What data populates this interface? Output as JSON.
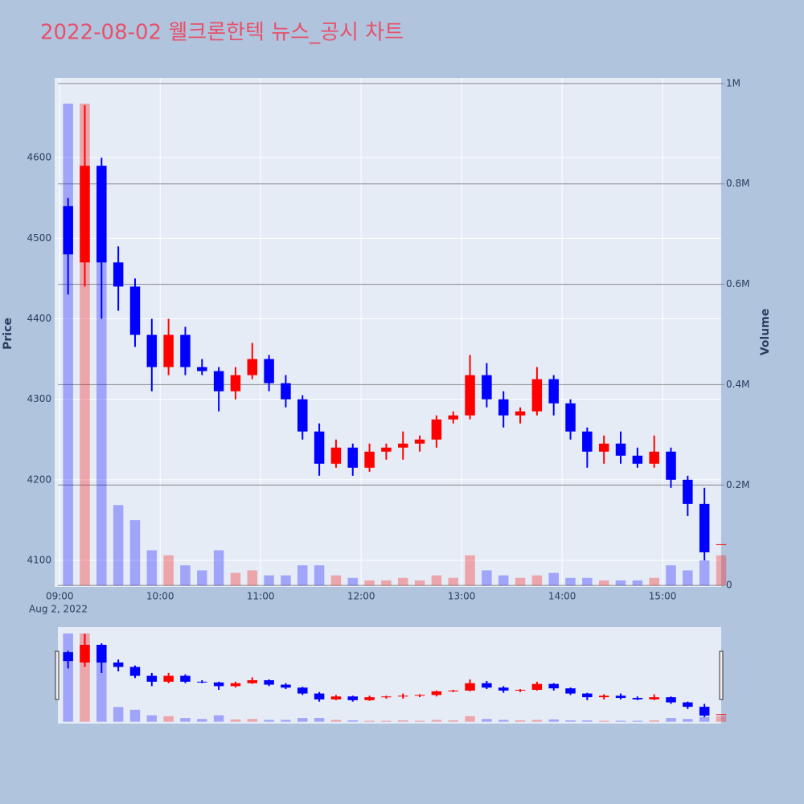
{
  "chart_data": {
    "type": "candlestick",
    "title": "2022-08-02 웰크론한텍 뉴스_공시 차트",
    "y_title": "Price",
    "y2_title": "Volume",
    "x_date_label": "Aug 2, 2022",
    "x": [
      "09:00",
      "09:10",
      "09:20",
      "09:30",
      "09:40",
      "09:50",
      "10:00",
      "10:10",
      "10:20",
      "10:30",
      "10:40",
      "10:50",
      "11:00",
      "11:10",
      "11:20",
      "11:30",
      "11:40",
      "11:50",
      "12:00",
      "12:10",
      "12:20",
      "12:30",
      "12:40",
      "12:50",
      "13:00",
      "13:10",
      "13:20",
      "13:30",
      "13:40",
      "13:50",
      "14:00",
      "14:10",
      "14:20",
      "14:30",
      "14:40",
      "14:50",
      "15:00",
      "15:10",
      "15:20",
      "15:30"
    ],
    "open": [
      4540,
      4470,
      4590,
      4470,
      4440,
      4380,
      4340,
      4380,
      4340,
      4335,
      4310,
      4330,
      4350,
      4320,
      4300,
      4260,
      4220,
      4240,
      4215,
      4235,
      4240,
      4245,
      4250,
      4275,
      4280,
      4330,
      4300,
      4280,
      4285,
      4325,
      4295,
      4260,
      4235,
      4245,
      4230,
      4220,
      4235,
      4200,
      4170,
      4120
    ],
    "high": [
      4550,
      4665,
      4600,
      4490,
      4450,
      4400,
      4400,
      4390,
      4350,
      4340,
      4340,
      4370,
      4355,
      4330,
      4305,
      4270,
      4250,
      4245,
      4245,
      4245,
      4260,
      4255,
      4280,
      4285,
      4355,
      4345,
      4310,
      4290,
      4340,
      4330,
      4300,
      4265,
      4255,
      4260,
      4240,
      4255,
      4240,
      4205,
      4190,
      4120
    ],
    "low": [
      4430,
      4440,
      4400,
      4410,
      4365,
      4310,
      4330,
      4330,
      4330,
      4285,
      4300,
      4325,
      4310,
      4290,
      4250,
      4205,
      4215,
      4205,
      4210,
      4225,
      4225,
      4235,
      4240,
      4270,
      4275,
      4290,
      4265,
      4270,
      4280,
      4280,
      4250,
      4215,
      4220,
      4220,
      4215,
      4215,
      4190,
      4155,
      4100,
      4120
    ],
    "close": [
      4480,
      4590,
      4470,
      4440,
      4380,
      4340,
      4380,
      4340,
      4335,
      4310,
      4330,
      4350,
      4320,
      4300,
      4260,
      4220,
      4240,
      4215,
      4235,
      4240,
      4245,
      4250,
      4275,
      4280,
      4330,
      4300,
      4280,
      4285,
      4325,
      4295,
      4260,
      4235,
      4245,
      4230,
      4220,
      4235,
      4200,
      4170,
      4110,
      4120
    ],
    "volume": [
      960000,
      960000,
      700000,
      160000,
      130000,
      70000,
      60000,
      40000,
      30000,
      70000,
      25000,
      30000,
      20000,
      20000,
      40000,
      40000,
      20000,
      15000,
      10000,
      10000,
      15000,
      10000,
      20000,
      15000,
      60000,
      30000,
      20000,
      15000,
      20000,
      25000,
      15000,
      15000,
      10000,
      10000,
      10000,
      15000,
      40000,
      30000,
      50000,
      60000
    ],
    "increasing_color": "#ff0000",
    "decreasing_color": "#0000ff",
    "xlim": [
      "08:57",
      "15:35"
    ],
    "xticks": [
      "09:00",
      "10:00",
      "11:00",
      "12:00",
      "13:00",
      "14:00",
      "15:00"
    ],
    "ylim": [
      4067,
      4699
    ],
    "yticks": [
      4100,
      4200,
      4300,
      4400,
      4500,
      4600
    ],
    "y2lim": [
      -3000,
      1011000
    ],
    "y2ticks": [
      0,
      {
        "value": 200000,
        "label": "0.2M"
      },
      {
        "value": 400000,
        "label": "0.4M"
      },
      {
        "value": 600000,
        "label": "0.6M"
      },
      {
        "value": 800000,
        "label": "0.8M"
      },
      {
        "value": 1000000,
        "label": "1M"
      }
    ],
    "title_color": "#e8506a",
    "plot_bg": "#e5ecf6",
    "grid": true
  }
}
